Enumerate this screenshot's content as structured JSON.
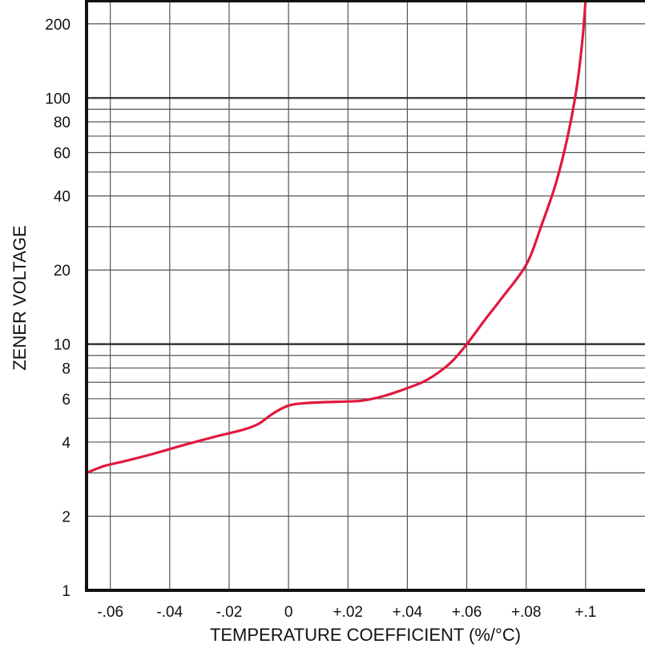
{
  "chart_data": {
    "type": "line",
    "title": "",
    "xlabel": "TEMPERATURE COEFFICIENT (%/°C)",
    "ylabel": "ZENER VOLTAGE",
    "x_scale": "linear",
    "y_scale": "log",
    "xlim": [
      -0.068,
      0.12
    ],
    "ylim": [
      1,
      250
    ],
    "x_ticks": [
      {
        "value": -0.06,
        "label": "-.06"
      },
      {
        "value": -0.04,
        "label": "-.04"
      },
      {
        "value": -0.02,
        "label": "-.02"
      },
      {
        "value": 0,
        "label": "0"
      },
      {
        "value": 0.02,
        "label": "+.02"
      },
      {
        "value": 0.04,
        "label": "+.04"
      },
      {
        "value": 0.06,
        "label": "+.06"
      },
      {
        "value": 0.08,
        "label": "+.08"
      },
      {
        "value": 0.1,
        "label": "+.1"
      }
    ],
    "y_ticks": [
      {
        "value": 1,
        "label": "1"
      },
      {
        "value": 2,
        "label": "2"
      },
      {
        "value": 4,
        "label": "4"
      },
      {
        "value": 6,
        "label": "6"
      },
      {
        "value": 8,
        "label": "8"
      },
      {
        "value": 10,
        "label": "10"
      },
      {
        "value": 20,
        "label": "20"
      },
      {
        "value": 40,
        "label": "40"
      },
      {
        "value": 60,
        "label": "60"
      },
      {
        "value": 80,
        "label": "80"
      },
      {
        "value": 100,
        "label": "100"
      },
      {
        "value": 200,
        "label": "200"
      }
    ],
    "x_gridlines": [
      -0.06,
      -0.04,
      -0.02,
      0,
      0.02,
      0.04,
      0.06,
      0.08,
      0.1
    ],
    "y_gridlines": [
      2,
      3,
      4,
      5,
      6,
      7,
      8,
      9,
      10,
      20,
      30,
      40,
      50,
      60,
      70,
      80,
      90,
      100,
      200
    ],
    "y_gridlines_major": [
      10,
      100
    ],
    "grid": true,
    "series": [
      {
        "color": "#e0193f",
        "points": [
          {
            "x": -0.068,
            "y": 3.0
          },
          {
            "x": -0.062,
            "y": 3.2
          },
          {
            "x": -0.055,
            "y": 3.35
          },
          {
            "x": -0.045,
            "y": 3.6
          },
          {
            "x": -0.035,
            "y": 3.9
          },
          {
            "x": -0.025,
            "y": 4.2
          },
          {
            "x": -0.015,
            "y": 4.5
          },
          {
            "x": -0.01,
            "y": 4.75
          },
          {
            "x": -0.006,
            "y": 5.15
          },
          {
            "x": -0.002,
            "y": 5.5
          },
          {
            "x": 0.002,
            "y": 5.7
          },
          {
            "x": 0.01,
            "y": 5.8
          },
          {
            "x": 0.02,
            "y": 5.85
          },
          {
            "x": 0.025,
            "y": 5.9
          },
          {
            "x": 0.032,
            "y": 6.15
          },
          {
            "x": 0.038,
            "y": 6.5
          },
          {
            "x": 0.045,
            "y": 7.0
          },
          {
            "x": 0.05,
            "y": 7.6
          },
          {
            "x": 0.055,
            "y": 8.5
          },
          {
            "x": 0.06,
            "y": 10.0
          },
          {
            "x": 0.066,
            "y": 12.5
          },
          {
            "x": 0.072,
            "y": 15.5
          },
          {
            "x": 0.08,
            "y": 21.0
          },
          {
            "x": 0.085,
            "y": 30.0
          },
          {
            "x": 0.09,
            "y": 45.0
          },
          {
            "x": 0.094,
            "y": 70.0
          },
          {
            "x": 0.097,
            "y": 110.0
          },
          {
            "x": 0.099,
            "y": 175.0
          },
          {
            "x": 0.1,
            "y": 250.0
          }
        ]
      }
    ]
  }
}
